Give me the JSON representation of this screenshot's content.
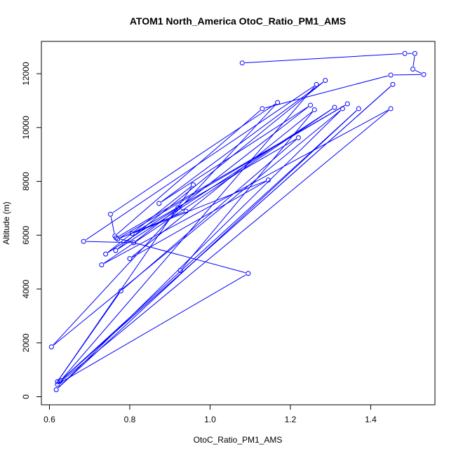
{
  "chart_data": {
    "type": "line",
    "title": "ATOM1 North_America OtoC_Ratio_PM1_AMS",
    "xlabel": "OtoC_Ratio_PM1_AMS",
    "ylabel": "Altitude (m)",
    "xlim": [
      0.58,
      1.56
    ],
    "ylim": [
      -300,
      13200
    ],
    "xticks": [
      "0.6",
      "0.8",
      "1.0",
      "1.2",
      "1.4"
    ],
    "yticks": [
      "0",
      "2000",
      "4000",
      "6000",
      "8000",
      "10000",
      "12000"
    ],
    "grid": false,
    "legend": "none",
    "markers": "open-circle",
    "series": [
      {
        "color": "#0000ff",
        "x": [
          1.08,
          1.485,
          1.51,
          1.505,
          1.532,
          1.45,
          1.13,
          0.763,
          0.752,
          1.168,
          0.605,
          1.33,
          0.617,
          1.37,
          0.625,
          1.455,
          0.628,
          1.265,
          0.685,
          0.81,
          1.25,
          0.873,
          1.287,
          0.765,
          1.31,
          0.73,
          1.45,
          0.62,
          1.095,
          0.766,
          1.342,
          0.77,
          0.94,
          0.92,
          0.74,
          0.958,
          0.62,
          0.778,
          1.22,
          0.806,
          1.145,
          0.8,
          1.26,
          0.926
        ],
        "y": [
          12400,
          12750,
          12750,
          12170,
          11970,
          11950,
          10700,
          5970,
          6780,
          10930,
          1850,
          10700,
          260,
          10700,
          560,
          11600,
          600,
          11600,
          5770,
          5720,
          10830,
          7180,
          11750,
          5430,
          10750,
          4900,
          10700,
          460,
          4580,
          5900,
          10880,
          5860,
          6890,
          7020,
          5300,
          7870,
          560,
          3930,
          9620,
          6060,
          8050,
          5130,
          10660,
          4690
        ]
      }
    ]
  }
}
